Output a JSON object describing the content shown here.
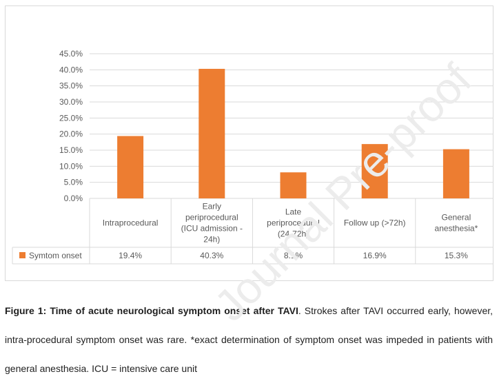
{
  "chart_data": {
    "type": "bar",
    "categories": [
      [
        "Intraprocedural"
      ],
      [
        "Early",
        "periprocedural",
        "(ICU admission -",
        "24h)"
      ],
      [
        "Late",
        "periprocedural",
        "(24-72h)"
      ],
      [
        "Follow up (>72h)"
      ],
      [
        "General",
        "anesthesia*"
      ]
    ],
    "series": [
      {
        "name": "Symtom onset",
        "values": [
          19.4,
          40.3,
          8.1,
          16.9,
          15.3
        ],
        "color": "#ed7d31"
      }
    ],
    "data_labels": [
      "19.4%",
      "40.3%",
      "8.1%",
      "16.9%",
      "15.3%"
    ],
    "yticks": [
      "0.0%",
      "5.0%",
      "10.0%",
      "15.0%",
      "20.0%",
      "25.0%",
      "30.0%",
      "35.0%",
      "40.0%",
      "45.0%"
    ],
    "ylim": [
      0,
      45
    ],
    "grid": true,
    "legend": "data-table",
    "title": "",
    "xlabel": "",
    "ylabel": ""
  },
  "caption": {
    "bold": "Figure 1: Time of acute neurological symptom onset after TAVI",
    "text": ". Strokes after TAVI occurred early, however, intra-procedural symptom onset was rare. *exact determination of symptom onset was impeded in patients with general anesthesia. ICU = intensive care unit"
  },
  "watermark": "Journal Pre-proof"
}
